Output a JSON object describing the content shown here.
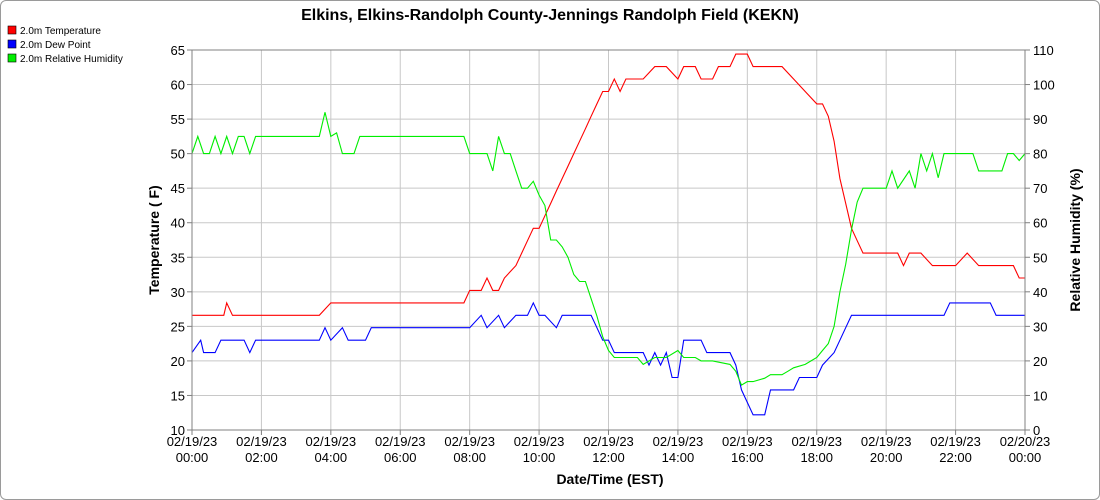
{
  "chart_data": {
    "type": "line",
    "title": "Elkins, Elkins-Randolph County-Jennings Randolph Field (KEKN)",
    "xlabel": "Date/Time (EST)",
    "ylabel_left": "Temperature ( F)",
    "ylabel_right": "Relative Humidity (%)",
    "ylim_left": [
      10,
      65
    ],
    "ylim_right": [
      0,
      110
    ],
    "yticks_left": [
      "10",
      "15",
      "20",
      "25",
      "30",
      "35",
      "40",
      "45",
      "50",
      "55",
      "60",
      "65"
    ],
    "yticks_right": [
      "0",
      "10",
      "20",
      "30",
      "40",
      "50",
      "60",
      "70",
      "80",
      "90",
      "100",
      "110"
    ],
    "xticks": [
      {
        "date": "02/19/23",
        "time": "00:00"
      },
      {
        "date": "02/19/23",
        "time": "02:00"
      },
      {
        "date": "02/19/23",
        "time": "04:00"
      },
      {
        "date": "02/19/23",
        "time": "06:00"
      },
      {
        "date": "02/19/23",
        "time": "08:00"
      },
      {
        "date": "02/19/23",
        "time": "10:00"
      },
      {
        "date": "02/19/23",
        "time": "12:00"
      },
      {
        "date": "02/19/23",
        "time": "14:00"
      },
      {
        "date": "02/19/23",
        "time": "16:00"
      },
      {
        "date": "02/19/23",
        "time": "18:00"
      },
      {
        "date": "02/19/23",
        "time": "20:00"
      },
      {
        "date": "02/19/23",
        "time": "22:00"
      },
      {
        "date": "02/20/23",
        "time": "00:00"
      }
    ],
    "grid": true,
    "legend_position": "top-left",
    "series": [
      {
        "name": "2.0m Temperature",
        "color": "#ff0000",
        "axis": "left",
        "points": [
          [
            "00:00",
            26.6
          ],
          [
            "00:20",
            26.6
          ],
          [
            "00:40",
            26.6
          ],
          [
            "00:55",
            26.6
          ],
          [
            "01:00",
            28.4
          ],
          [
            "01:10",
            26.6
          ],
          [
            "01:30",
            26.6
          ],
          [
            "02:00",
            26.6
          ],
          [
            "02:30",
            26.6
          ],
          [
            "03:00",
            26.6
          ],
          [
            "03:40",
            26.6
          ],
          [
            "04:00",
            28.4
          ],
          [
            "04:30",
            28.4
          ],
          [
            "05:00",
            28.4
          ],
          [
            "06:00",
            28.4
          ],
          [
            "07:00",
            28.4
          ],
          [
            "07:50",
            28.4
          ],
          [
            "08:00",
            30.2
          ],
          [
            "08:20",
            30.2
          ],
          [
            "08:30",
            32.0
          ],
          [
            "08:40",
            30.2
          ],
          [
            "08:50",
            30.2
          ],
          [
            "09:00",
            32.0
          ],
          [
            "09:20",
            33.8
          ],
          [
            "09:30",
            35.6
          ],
          [
            "09:40",
            37.4
          ],
          [
            "09:50",
            39.2
          ],
          [
            "10:00",
            39.2
          ],
          [
            "10:10",
            41.0
          ],
          [
            "10:20",
            42.8
          ],
          [
            "10:30",
            44.6
          ],
          [
            "10:40",
            46.4
          ],
          [
            "10:50",
            48.2
          ],
          [
            "11:00",
            50.0
          ],
          [
            "11:10",
            51.8
          ],
          [
            "11:20",
            53.6
          ],
          [
            "11:30",
            55.4
          ],
          [
            "11:40",
            57.2
          ],
          [
            "11:50",
            59.0
          ],
          [
            "12:00",
            59.0
          ],
          [
            "12:10",
            60.8
          ],
          [
            "12:20",
            59.0
          ],
          [
            "12:30",
            60.8
          ],
          [
            "13:00",
            60.8
          ],
          [
            "13:20",
            62.6
          ],
          [
            "13:40",
            62.6
          ],
          [
            "14:00",
            60.8
          ],
          [
            "14:10",
            62.6
          ],
          [
            "14:30",
            62.6
          ],
          [
            "14:40",
            60.8
          ],
          [
            "15:00",
            60.8
          ],
          [
            "15:10",
            62.6
          ],
          [
            "15:30",
            62.6
          ],
          [
            "15:40",
            64.4
          ],
          [
            "16:00",
            64.4
          ],
          [
            "16:10",
            62.6
          ],
          [
            "16:40",
            62.6
          ],
          [
            "17:00",
            62.6
          ],
          [
            "17:20",
            60.8
          ],
          [
            "17:40",
            59.0
          ],
          [
            "18:00",
            57.2
          ],
          [
            "18:10",
            57.2
          ],
          [
            "18:20",
            55.4
          ],
          [
            "18:30",
            51.8
          ],
          [
            "18:40",
            46.4
          ],
          [
            "18:50",
            42.8
          ],
          [
            "19:00",
            39.2
          ],
          [
            "19:10",
            37.4
          ],
          [
            "19:20",
            35.6
          ],
          [
            "19:40",
            35.6
          ],
          [
            "20:00",
            35.6
          ],
          [
            "20:20",
            35.6
          ],
          [
            "20:30",
            33.8
          ],
          [
            "20:40",
            35.6
          ],
          [
            "21:00",
            35.6
          ],
          [
            "21:20",
            33.8
          ],
          [
            "21:40",
            33.8
          ],
          [
            "22:00",
            33.8
          ],
          [
            "22:20",
            35.6
          ],
          [
            "22:40",
            33.8
          ],
          [
            "23:00",
            33.8
          ],
          [
            "23:20",
            33.8
          ],
          [
            "23:40",
            33.8
          ],
          [
            "23:50",
            32.0
          ],
          [
            "24:00",
            32.0
          ]
        ]
      },
      {
        "name": "2.0m Dew Point",
        "color": "#0000ff",
        "axis": "left",
        "points": [
          [
            "00:00",
            21.2
          ],
          [
            "00:15",
            23.0
          ],
          [
            "00:20",
            21.2
          ],
          [
            "00:40",
            21.2
          ],
          [
            "00:50",
            23.0
          ],
          [
            "01:30",
            23.0
          ],
          [
            "01:40",
            21.2
          ],
          [
            "01:50",
            23.0
          ],
          [
            "02:00",
            23.0
          ],
          [
            "03:00",
            23.0
          ],
          [
            "03:40",
            23.0
          ],
          [
            "03:50",
            24.8
          ],
          [
            "04:00",
            23.0
          ],
          [
            "04:20",
            24.8
          ],
          [
            "04:30",
            23.0
          ],
          [
            "05:00",
            23.0
          ],
          [
            "05:10",
            24.8
          ],
          [
            "05:30",
            24.8
          ],
          [
            "06:00",
            24.8
          ],
          [
            "07:00",
            24.8
          ],
          [
            "07:50",
            24.8
          ],
          [
            "08:00",
            24.8
          ],
          [
            "08:20",
            26.6
          ],
          [
            "08:30",
            24.8
          ],
          [
            "08:50",
            26.6
          ],
          [
            "09:00",
            24.8
          ],
          [
            "09:20",
            26.6
          ],
          [
            "09:40",
            26.6
          ],
          [
            "09:50",
            28.4
          ],
          [
            "10:00",
            26.6
          ],
          [
            "10:10",
            26.6
          ],
          [
            "10:30",
            24.8
          ],
          [
            "10:40",
            26.6
          ],
          [
            "11:00",
            26.6
          ],
          [
            "11:30",
            26.6
          ],
          [
            "11:40",
            24.8
          ],
          [
            "11:50",
            23.0
          ],
          [
            "12:00",
            23.0
          ],
          [
            "12:10",
            21.2
          ],
          [
            "12:20",
            21.2
          ],
          [
            "12:40",
            21.2
          ],
          [
            "13:00",
            21.2
          ],
          [
            "13:10",
            19.4
          ],
          [
            "13:20",
            21.2
          ],
          [
            "13:30",
            19.4
          ],
          [
            "13:40",
            21.2
          ],
          [
            "13:50",
            17.6
          ],
          [
            "14:00",
            17.6
          ],
          [
            "14:10",
            23.0
          ],
          [
            "14:40",
            23.0
          ],
          [
            "14:50",
            21.2
          ],
          [
            "15:00",
            21.2
          ],
          [
            "15:30",
            21.2
          ],
          [
            "15:40",
            19.4
          ],
          [
            "15:50",
            15.8
          ],
          [
            "16:00",
            14.0
          ],
          [
            "16:10",
            12.2
          ],
          [
            "16:20",
            12.2
          ],
          [
            "16:30",
            12.2
          ],
          [
            "16:40",
            15.8
          ],
          [
            "17:00",
            15.8
          ],
          [
            "17:20",
            15.8
          ],
          [
            "17:30",
            17.6
          ],
          [
            "18:00",
            17.6
          ],
          [
            "18:10",
            19.4
          ],
          [
            "18:30",
            21.2
          ],
          [
            "18:40",
            23.0
          ],
          [
            "18:50",
            24.8
          ],
          [
            "19:00",
            26.6
          ],
          [
            "19:30",
            26.6
          ],
          [
            "20:00",
            26.6
          ],
          [
            "20:30",
            26.6
          ],
          [
            "21:00",
            26.6
          ],
          [
            "21:40",
            26.6
          ],
          [
            "21:50",
            28.4
          ],
          [
            "22:00",
            28.4
          ],
          [
            "22:30",
            28.4
          ],
          [
            "23:00",
            28.4
          ],
          [
            "23:10",
            26.6
          ],
          [
            "23:40",
            26.6
          ],
          [
            "24:00",
            26.6
          ]
        ]
      },
      {
        "name": "2.0m Relative Humidity",
        "color": "#00ee00",
        "axis": "right",
        "points": [
          [
            "00:00",
            80
          ],
          [
            "00:10",
            85
          ],
          [
            "00:20",
            80
          ],
          [
            "00:30",
            80
          ],
          [
            "00:40",
            85
          ],
          [
            "00:50",
            80
          ],
          [
            "01:00",
            85
          ],
          [
            "01:10",
            80
          ],
          [
            "01:20",
            85
          ],
          [
            "01:30",
            85
          ],
          [
            "01:40",
            80
          ],
          [
            "01:50",
            85
          ],
          [
            "02:00",
            85
          ],
          [
            "03:00",
            85
          ],
          [
            "03:40",
            85
          ],
          [
            "03:50",
            92
          ],
          [
            "04:00",
            85
          ],
          [
            "04:10",
            86
          ],
          [
            "04:20",
            80
          ],
          [
            "04:40",
            80
          ],
          [
            "04:50",
            85
          ],
          [
            "05:00",
            85
          ],
          [
            "06:00",
            85
          ],
          [
            "07:00",
            85
          ],
          [
            "07:50",
            85
          ],
          [
            "08:00",
            80
          ],
          [
            "08:30",
            80
          ],
          [
            "08:40",
            75
          ],
          [
            "08:50",
            85
          ],
          [
            "09:00",
            80
          ],
          [
            "09:10",
            80
          ],
          [
            "09:20",
            75
          ],
          [
            "09:30",
            70
          ],
          [
            "09:40",
            70
          ],
          [
            "09:50",
            72
          ],
          [
            "10:00",
            68
          ],
          [
            "10:10",
            65
          ],
          [
            "10:20",
            55
          ],
          [
            "10:30",
            55
          ],
          [
            "10:40",
            53
          ],
          [
            "10:50",
            50
          ],
          [
            "11:00",
            45
          ],
          [
            "11:10",
            43
          ],
          [
            "11:20",
            43
          ],
          [
            "11:30",
            38
          ],
          [
            "11:40",
            33
          ],
          [
            "11:50",
            27
          ],
          [
            "12:00",
            23
          ],
          [
            "12:10",
            21
          ],
          [
            "12:30",
            21
          ],
          [
            "12:50",
            21
          ],
          [
            "13:00",
            19
          ],
          [
            "13:20",
            21
          ],
          [
            "13:40",
            21
          ],
          [
            "14:00",
            23
          ],
          [
            "14:10",
            21
          ],
          [
            "14:30",
            21
          ],
          [
            "14:40",
            20
          ],
          [
            "15:00",
            20
          ],
          [
            "15:30",
            19
          ],
          [
            "15:40",
            17
          ],
          [
            "15:50",
            13
          ],
          [
            "16:00",
            14
          ],
          [
            "16:10",
            14
          ],
          [
            "16:30",
            15
          ],
          [
            "16:40",
            16
          ],
          [
            "17:00",
            16
          ],
          [
            "17:10",
            17
          ],
          [
            "17:20",
            18
          ],
          [
            "17:40",
            19
          ],
          [
            "17:50",
            20
          ],
          [
            "18:00",
            21
          ],
          [
            "18:10",
            23
          ],
          [
            "18:20",
            25
          ],
          [
            "18:30",
            30
          ],
          [
            "18:40",
            40
          ],
          [
            "18:50",
            48
          ],
          [
            "19:00",
            58
          ],
          [
            "19:10",
            66
          ],
          [
            "19:20",
            70
          ],
          [
            "19:40",
            70
          ],
          [
            "20:00",
            70
          ],
          [
            "20:10",
            75
          ],
          [
            "20:20",
            70
          ],
          [
            "20:40",
            75
          ],
          [
            "20:50",
            70
          ],
          [
            "21:00",
            80
          ],
          [
            "21:10",
            75
          ],
          [
            "21:20",
            80
          ],
          [
            "21:30",
            73
          ],
          [
            "21:40",
            80
          ],
          [
            "21:50",
            80
          ],
          [
            "22:00",
            80
          ],
          [
            "22:30",
            80
          ],
          [
            "22:40",
            75
          ],
          [
            "23:00",
            75
          ],
          [
            "23:20",
            75
          ],
          [
            "23:30",
            80
          ],
          [
            "23:40",
            80
          ],
          [
            "23:50",
            78
          ],
          [
            "24:00",
            80
          ]
        ]
      }
    ]
  }
}
